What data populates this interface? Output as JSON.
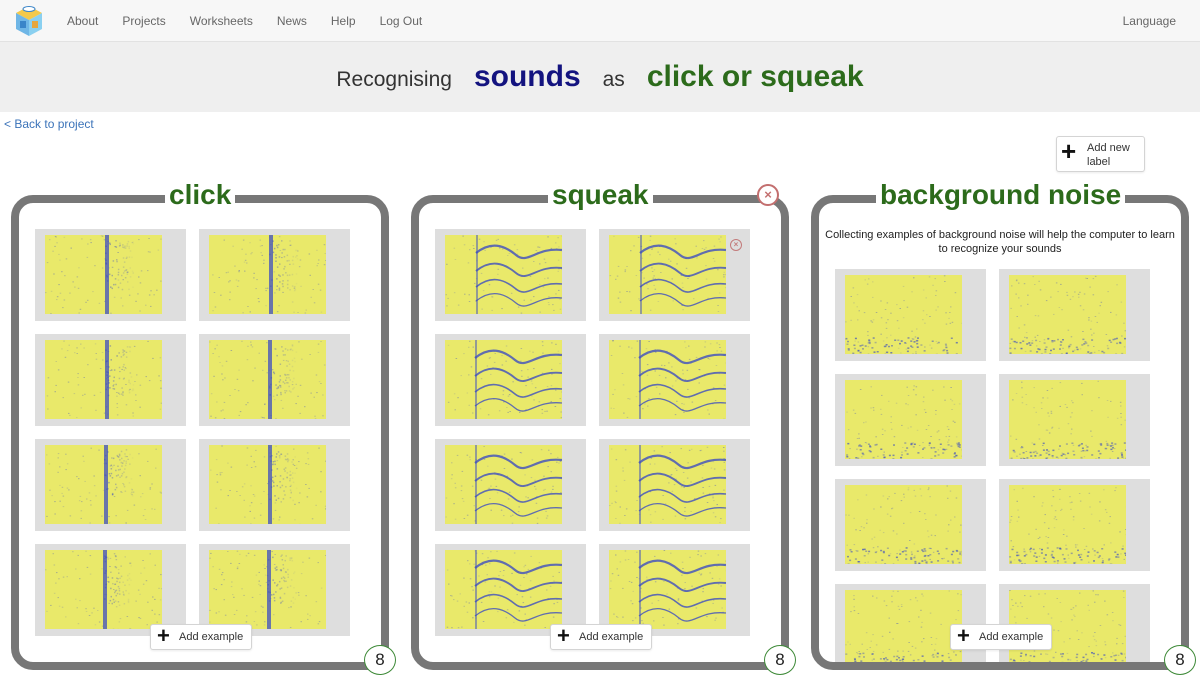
{
  "nav": {
    "items": [
      "About",
      "Projects",
      "Worksheets",
      "News",
      "Help",
      "Log Out"
    ],
    "language": "Language"
  },
  "banner": {
    "word1": "Recognising",
    "type": "sounds",
    "word2": "as",
    "labels": "click or squeak"
  },
  "back_link": "< Back to project",
  "add_label": "Add new label",
  "add_example": "Add example",
  "buckets": [
    {
      "title": "click",
      "count": "8",
      "pattern": "click"
    },
    {
      "title": "squeak",
      "count": "8",
      "pattern": "squeak"
    },
    {
      "title": "background noise",
      "count": "8",
      "pattern": "noise",
      "help": "Collecting examples of background noise will help the computer to learn to recognize your sounds"
    }
  ],
  "colors": {
    "label_green": "#2c6b1b",
    "type_blue": "#13137f",
    "spectro_yellow": "#e9e96a",
    "spectro_blue": "#3d4ec0",
    "badge_green": "#3e8a38",
    "delete_red": "#c36f6f"
  }
}
